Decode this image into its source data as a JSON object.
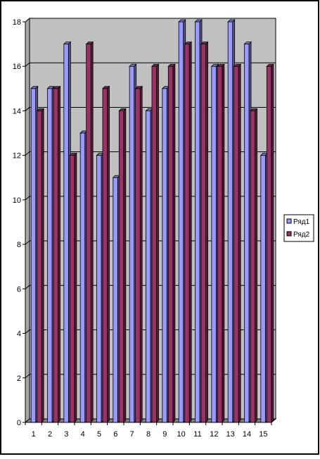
{
  "chart_data": {
    "type": "bar",
    "categories": [
      "1",
      "2",
      "3",
      "4",
      "5",
      "6",
      "7",
      "8",
      "9",
      "10",
      "11",
      "12",
      "13",
      "14",
      "15"
    ],
    "series": [
      {
        "name": "Ряд1",
        "color": "#9999ff",
        "values": [
          15,
          15,
          17,
          13,
          12,
          11,
          16,
          14,
          15,
          18,
          18,
          16,
          18,
          17,
          12
        ]
      },
      {
        "name": "Ряд2",
        "color": "#993366",
        "values": [
          14,
          15,
          12,
          17,
          15,
          14,
          15,
          16,
          16,
          17,
          17,
          16,
          16,
          14,
          16
        ]
      }
    ],
    "ylim": [
      0,
      18
    ],
    "yticks": [
      "0",
      "2",
      "4",
      "6",
      "8",
      "10",
      "12",
      "14",
      "16",
      "18"
    ],
    "grid": true,
    "legend_position": "right",
    "plot_background": "#c0c0c0"
  }
}
